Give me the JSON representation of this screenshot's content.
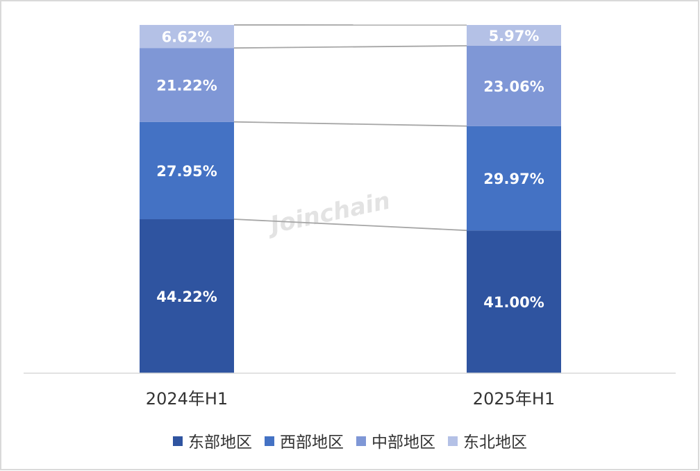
{
  "chart_data": {
    "type": "bar",
    "stacked": true,
    "normalized_percent": true,
    "categories": [
      "2024年H1",
      "2025年H1"
    ],
    "series": [
      {
        "name": "东部地区",
        "values": [
          44.22,
          41.0
        ],
        "labels": [
          "44.22%",
          "41.00%"
        ],
        "color": "#2f54a0"
      },
      {
        "name": "西部地区",
        "values": [
          27.95,
          29.97
        ],
        "labels": [
          "27.95%",
          "29.97%"
        ],
        "color": "#4472c4"
      },
      {
        "name": "中部地区",
        "values": [
          21.22,
          23.06
        ],
        "labels": [
          "21.22%",
          "23.06%"
        ],
        "color": "#7f97d6"
      },
      {
        "name": "东北地区",
        "values": [
          6.62,
          5.97
        ],
        "labels": [
          "6.62%",
          "5.97%"
        ],
        "color": "#b4c1e6"
      }
    ],
    "ylim": [
      0,
      100
    ],
    "series_lines": true,
    "series_line_color": "#a6a6a6",
    "grid": false,
    "legend": "bottom",
    "watermark": "Joinchain"
  },
  "colors": {
    "border": "#d9d9d9",
    "axis": "#d9d9d9",
    "label_text": "#ffffff",
    "category_text": "#333333"
  }
}
